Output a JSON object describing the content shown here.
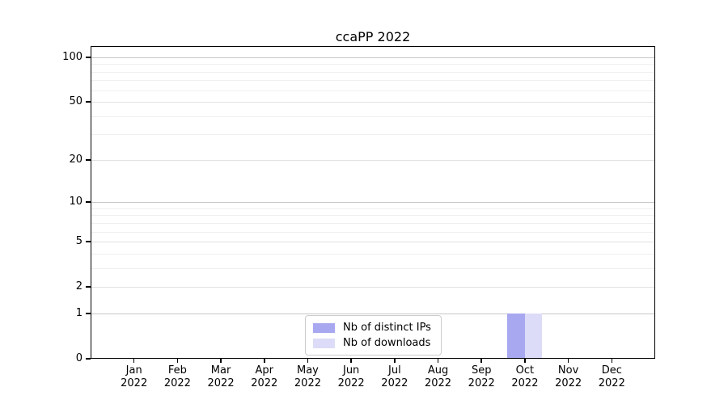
{
  "title": "ccaPP 2022",
  "chart_data": {
    "type": "bar",
    "title": "ccaPP 2022",
    "x_categories": [
      {
        "month": "Jan",
        "year": "2022"
      },
      {
        "month": "Feb",
        "year": "2022"
      },
      {
        "month": "Mar",
        "year": "2022"
      },
      {
        "month": "Apr",
        "year": "2022"
      },
      {
        "month": "May",
        "year": "2022"
      },
      {
        "month": "Jun",
        "year": "2022"
      },
      {
        "month": "Jul",
        "year": "2022"
      },
      {
        "month": "Aug",
        "year": "2022"
      },
      {
        "month": "Sep",
        "year": "2022"
      },
      {
        "month": "Oct",
        "year": "2022"
      },
      {
        "month": "Nov",
        "year": "2022"
      },
      {
        "month": "Dec",
        "year": "2022"
      }
    ],
    "series": [
      {
        "name": "Nb of distinct IPs",
        "color": "#a8a8f0",
        "values": [
          0,
          0,
          0,
          0,
          0,
          0,
          0,
          0,
          0,
          1,
          0,
          0
        ]
      },
      {
        "name": "Nb of downloads",
        "color": "#dcdcf8",
        "values": [
          0,
          0,
          0,
          0,
          0,
          0,
          0,
          0,
          0,
          1,
          0,
          0
        ]
      }
    ],
    "y_axis": {
      "scale": "log1p",
      "ticks": [
        0,
        1,
        2,
        5,
        10,
        20,
        50,
        100
      ],
      "decade_ticks": [
        1,
        10,
        100
      ],
      "minor_gridlines": [
        3,
        4,
        6,
        7,
        8,
        9,
        30,
        40,
        60,
        70,
        80,
        90
      ],
      "range": [
        0,
        119
      ]
    },
    "xlabel": "",
    "ylabel": "",
    "grid": true,
    "legend": {
      "position": "inside-bottom-center",
      "background": "#ffffff",
      "border_color": "#cccccc"
    },
    "colors": {
      "decade_gridline": "#c8c8c8",
      "labeled_gridline": "#e2e2e2",
      "minor_gridline": "#efefef",
      "axis": "#000000",
      "text": "#000000"
    }
  }
}
